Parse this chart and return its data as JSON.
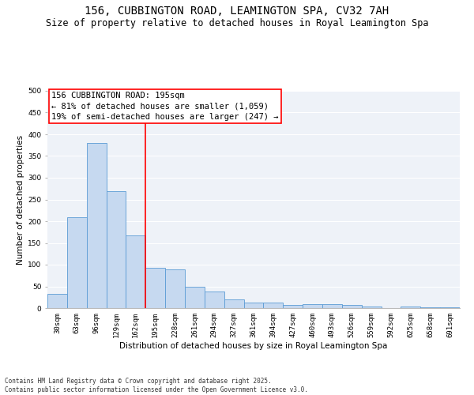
{
  "title": "156, CUBBINGTON ROAD, LEAMINGTON SPA, CV32 7AH",
  "subtitle": "Size of property relative to detached houses in Royal Leamington Spa",
  "xlabel": "Distribution of detached houses by size in Royal Leamington Spa",
  "ylabel": "Number of detached properties",
  "categories": [
    "30sqm",
    "63sqm",
    "96sqm",
    "129sqm",
    "162sqm",
    "195sqm",
    "228sqm",
    "261sqm",
    "294sqm",
    "327sqm",
    "361sqm",
    "394sqm",
    "427sqm",
    "460sqm",
    "493sqm",
    "526sqm",
    "559sqm",
    "592sqm",
    "625sqm",
    "658sqm",
    "691sqm"
  ],
  "values": [
    33,
    210,
    380,
    270,
    168,
    93,
    90,
    50,
    38,
    20,
    12,
    12,
    7,
    10,
    10,
    7,
    3,
    0,
    4,
    1,
    1
  ],
  "bar_color": "#c6d9f0",
  "bar_edge_color": "#5b9bd5",
  "vline_x_index": 5,
  "vline_color": "red",
  "annotation_text": "156 CUBBINGTON ROAD: 195sqm\n← 81% of detached houses are smaller (1,059)\n19% of semi-detached houses are larger (247) →",
  "annotation_box_color": "red",
  "ylim": [
    0,
    500
  ],
  "yticks": [
    0,
    50,
    100,
    150,
    200,
    250,
    300,
    350,
    400,
    450,
    500
  ],
  "bg_color": "#eef2f8",
  "grid_color": "white",
  "footnote": "Contains HM Land Registry data © Crown copyright and database right 2025.\nContains public sector information licensed under the Open Government Licence v3.0.",
  "title_fontsize": 10,
  "subtitle_fontsize": 8.5,
  "axis_label_fontsize": 7.5,
  "tick_fontsize": 6.5,
  "annotation_fontsize": 7.5,
  "footnote_fontsize": 5.5
}
